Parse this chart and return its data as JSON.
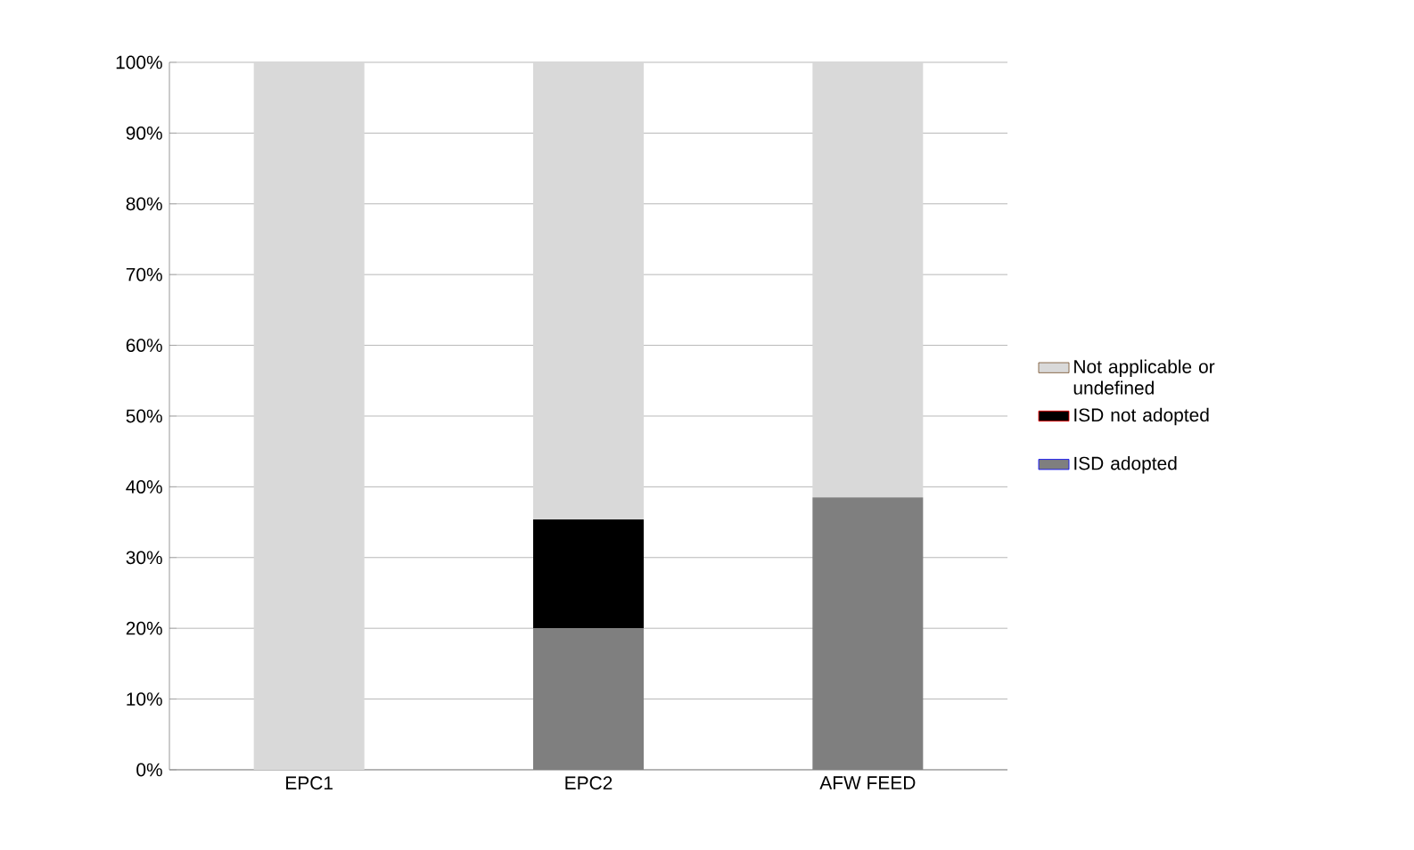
{
  "chart_data": {
    "type": "bar",
    "stacked": true,
    "categories": [
      "EPC1",
      "EPC2",
      "AFW FEED"
    ],
    "series": [
      {
        "name": "ISD adopted",
        "color": "#7f7f7f",
        "values": [
          0,
          20,
          38.5
        ]
      },
      {
        "name": "ISD not adopted",
        "color": "#000000",
        "values": [
          0,
          15.4,
          0
        ]
      },
      {
        "name": "Not applicable or undefined",
        "color": "#d9d9d9",
        "values": [
          100,
          64.6,
          61.5
        ]
      }
    ],
    "ylim": [
      0,
      100
    ],
    "yticks": [
      {
        "value": 0,
        "label": "0%"
      },
      {
        "value": 10,
        "label": "10%"
      },
      {
        "value": 20,
        "label": "20%"
      },
      {
        "value": 30,
        "label": "30%"
      },
      {
        "value": 40,
        "label": "40%"
      },
      {
        "value": 50,
        "label": "50%"
      },
      {
        "value": 60,
        "label": "60%"
      },
      {
        "value": 70,
        "label": "70%"
      },
      {
        "value": 80,
        "label": "80%"
      },
      {
        "value": 90,
        "label": "90%"
      },
      {
        "value": 100,
        "label": "100%"
      }
    ],
    "grid": "y",
    "legend": "right"
  }
}
